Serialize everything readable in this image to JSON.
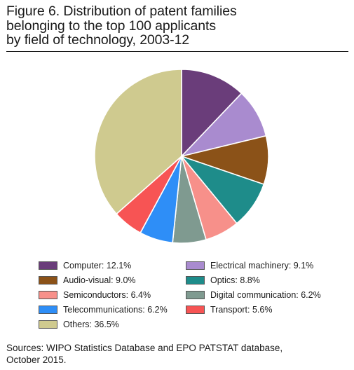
{
  "figure": {
    "title_lines": [
      "Figure 6. Distribution of patent families",
      "belonging to the top 100 applicants",
      "by field of technology, 2003-12"
    ],
    "source_lines": [
      "Sources: WIPO Statistics Database and EPO PATSTAT database,",
      "October 2015."
    ]
  },
  "chart_data": {
    "type": "pie",
    "title": "Distribution of patent families belonging to the top 100 applicants by field of technology, 2003-12",
    "start_angle": "12 o'clock",
    "direction": "clockwise",
    "legend_position": "bottom",
    "slices": [
      {
        "name": "Computer",
        "value": 12.1,
        "label": "Computer: 12.1%",
        "color": "#6a3d7a"
      },
      {
        "name": "Electrical machinery",
        "value": 9.1,
        "label": "Electrical machinery: 9.1%",
        "color": "#a98bcf"
      },
      {
        "name": "Audio-visual",
        "value": 9.0,
        "label": "Audio-visual: 9.0%",
        "color": "#8b5218"
      },
      {
        "name": "Optics",
        "value": 8.8,
        "label": "Optics: 8.8%",
        "color": "#1e8c8a"
      },
      {
        "name": "Semiconductors",
        "value": 6.4,
        "label": "Semiconductors: 6.4%",
        "color": "#f7908a"
      },
      {
        "name": "Digital communication",
        "value": 6.2,
        "label": "Digital communication: 6.2%",
        "color": "#7f9a90"
      },
      {
        "name": "Telecommunications",
        "value": 6.2,
        "label": "Telecommunications: 6.2%",
        "color": "#2e8ef7"
      },
      {
        "name": "Transport",
        "value": 5.6,
        "label": "Transport: 5.6%",
        "color": "#f75454"
      },
      {
        "name": "Others",
        "value": 36.5,
        "label": "Others: 36.5%",
        "color": "#cfca8f"
      }
    ]
  }
}
